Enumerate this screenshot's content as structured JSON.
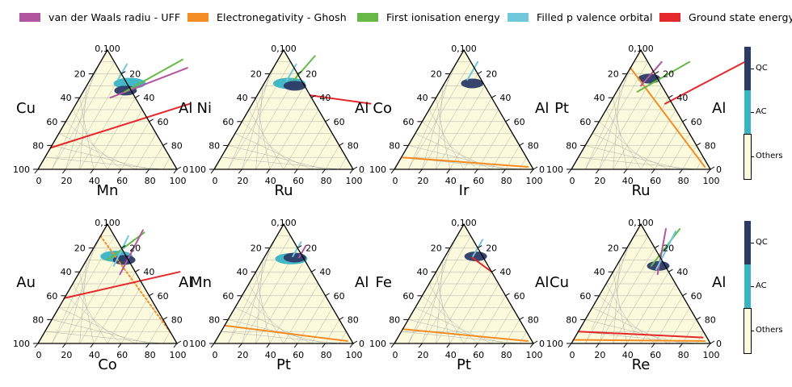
{
  "legend": {
    "items": [
      {
        "label": "van der Waals radiu - UFF",
        "color": "#b1559f"
      },
      {
        "label": "Electronegativity - Ghosh",
        "color": "#f48c26"
      },
      {
        "label": "First ionisation energy",
        "color": "#67b947"
      },
      {
        "label": "Filled p valence orbital",
        "color": "#70c8dd"
      },
      {
        "label": "Ground state energy",
        "color": "#e5262b"
      }
    ]
  },
  "colorbar": {
    "labels": [
      "QC",
      "AC",
      "Others"
    ],
    "colors": [
      "#2b3a67",
      "#3ab4c4",
      "#fbfadc"
    ]
  },
  "axis": {
    "ticks": [
      0,
      20,
      40,
      60,
      80,
      100
    ],
    "top_label": "0,100"
  },
  "chart_data": [
    {
      "type": "ternary",
      "left": "Cu",
      "right": "Al",
      "bottom": "Mn",
      "lines": [
        {
          "series": "van der Waals radiu - UFF",
          "from": [
            0.22,
            0.6
          ],
          "to": [
            0.65,
            0.85
          ]
        },
        {
          "series": "First ionisation energy",
          "from": [
            0.3,
            0.65
          ],
          "to": [
            0.58,
            0.92
          ]
        },
        {
          "series": "Filled p valence orbital",
          "from": [
            0.2,
            0.75
          ],
          "to": [
            0.2,
            0.88
          ]
        },
        {
          "series": "Ground state energy",
          "from": [
            0,
            0.18
          ],
          "to": [
            0.82,
            0.55
          ]
        }
      ],
      "regions": [
        {
          "class": "AC",
          "at": [
            0.3,
            0.72
          ]
        },
        {
          "class": "QC",
          "at": [
            0.3,
            0.66
          ]
        }
      ]
    },
    {
      "type": "ternary",
      "left": "Ni",
      "right": "Al",
      "bottom": "Ru",
      "lines": [
        {
          "series": "Filled p valence orbital",
          "from": [
            0.15,
            0.74
          ],
          "to": [
            0.15,
            0.88
          ]
        },
        {
          "series": "First ionisation energy",
          "from": [
            0.2,
            0.75
          ],
          "to": [
            0.25,
            0.95
          ]
        },
        {
          "series": "Ground state energy",
          "from": [
            0.38,
            0.62
          ],
          "to": [
            0.85,
            0.55
          ]
        }
      ],
      "regions": [
        {
          "class": "AC",
          "at": [
            0.18,
            0.72
          ]
        },
        {
          "class": "QC",
          "at": [
            0.23,
            0.7
          ]
        }
      ]
    },
    {
      "type": "ternary",
      "left": "Co",
      "right": "Al",
      "bottom": "Ir",
      "lines": [
        {
          "series": "Electronegativity - Ghosh",
          "from": [
            0,
            0.1
          ],
          "to": [
            0.95,
            0.02
          ]
        },
        {
          "series": "Filled p valence orbital",
          "from": [
            0.15,
            0.75
          ],
          "to": [
            0.15,
            0.9
          ]
        }
      ],
      "regions": [
        {
          "class": "QC",
          "at": [
            0.2,
            0.72
          ]
        }
      ]
    },
    {
      "type": "ternary",
      "left": "Pt",
      "right": "Al",
      "bottom": "Ru",
      "lines": [
        {
          "series": "Electronegativity - Ghosh",
          "from": [
            0,
            0.85
          ],
          "to": [
            0.95,
            0.02
          ]
        },
        {
          "series": "First ionisation energy",
          "from": [
            0.15,
            0.65
          ],
          "to": [
            0.4,
            0.9
          ]
        },
        {
          "series": "van der Waals radiu - UFF",
          "from": [
            0.15,
            0.7
          ],
          "to": [
            0.2,
            0.9
          ]
        },
        {
          "series": "Ground state energy",
          "from": [
            0.4,
            0.55
          ],
          "to": [
            0.82,
            0.92
          ]
        }
      ],
      "regions": [
        {
          "class": "QC",
          "at": [
            0.18,
            0.76
          ]
        }
      ]
    },
    {
      "type": "ternary",
      "left": "Au",
      "right": "Al",
      "bottom": "Co",
      "lines": [
        {
          "series": "Electronegativity - Ghosh",
          "from": [
            0,
            0.9
          ],
          "to": [
            0.92,
            0.08
          ],
          "style": "dotted"
        },
        {
          "series": "First ionisation energy",
          "from": [
            0.15,
            0.7
          ],
          "to": [
            0.3,
            0.93
          ]
        },
        {
          "series": "Filled p valence orbital",
          "from": [
            0.22,
            0.65
          ],
          "to": [
            0.2,
            0.9
          ]
        },
        {
          "series": "van der Waals radiu - UFF",
          "from": [
            0.3,
            0.58
          ],
          "to": [
            0.28,
            0.95
          ]
        },
        {
          "series": "Ground state energy",
          "from": [
            0,
            0.38
          ],
          "to": [
            0.72,
            0.6
          ]
        }
      ],
      "regions": [
        {
          "class": "AC",
          "at": [
            0.2,
            0.73
          ]
        },
        {
          "class": "QC",
          "at": [
            0.27,
            0.7
          ]
        }
      ]
    },
    {
      "type": "ternary",
      "left": "Mn",
      "right": "Al",
      "bottom": "Pt",
      "lines": [
        {
          "series": "Electronegativity - Ghosh",
          "from": [
            0,
            0.15
          ],
          "to": [
            0.95,
            0.02
          ]
        },
        {
          "series": "Filled p valence orbital",
          "from": [
            0.2,
            0.73
          ],
          "to": [
            0.2,
            0.85
          ]
        },
        {
          "series": "van der Waals radiu - UFF",
          "from": [
            0.25,
            0.72
          ],
          "to": [
            0.25,
            0.82
          ]
        }
      ],
      "regions": [
        {
          "class": "AC",
          "at": [
            0.2,
            0.71
          ]
        },
        {
          "class": "QC",
          "at": [
            0.22,
            0.72
          ]
        }
      ]
    },
    {
      "type": "ternary",
      "left": "Fe",
      "right": "Al",
      "bottom": "Pt",
      "lines": [
        {
          "series": "Electronegativity - Ghosh",
          "from": [
            0,
            0.12
          ],
          "to": [
            0.95,
            0.02
          ]
        },
        {
          "series": "Filled p valence orbital",
          "from": [
            0.2,
            0.73
          ],
          "to": [
            0.2,
            0.87
          ]
        },
        {
          "series": "Ground state energy",
          "from": [
            0.4,
            0.6
          ],
          "to": [
            0.2,
            0.72
          ]
        }
      ],
      "regions": [
        {
          "class": "QC",
          "at": [
            0.22,
            0.73
          ]
        }
      ]
    },
    {
      "type": "ternary",
      "left": "Cu",
      "right": "Al",
      "bottom": "Re",
      "lines": [
        {
          "series": "Electronegativity - Ghosh",
          "from": [
            0,
            0.03
          ],
          "to": [
            0.95,
            0.02
          ]
        },
        {
          "series": "Ground state energy",
          "from": [
            0,
            0.1
          ],
          "to": [
            0.92,
            0.05
          ]
        },
        {
          "series": "First ionisation energy",
          "from": [
            0.25,
            0.65
          ],
          "to": [
            0.3,
            0.96
          ]
        },
        {
          "series": "van der Waals radiu - UFF",
          "from": [
            0.33,
            0.58
          ],
          "to": [
            0.2,
            0.96
          ]
        },
        {
          "series": "Filled p valence orbital",
          "from": [
            0.3,
            0.62
          ],
          "to": [
            0.28,
            0.94
          ]
        }
      ],
      "regions": [
        {
          "class": "QC",
          "at": [
            0.3,
            0.65
          ]
        }
      ]
    }
  ]
}
